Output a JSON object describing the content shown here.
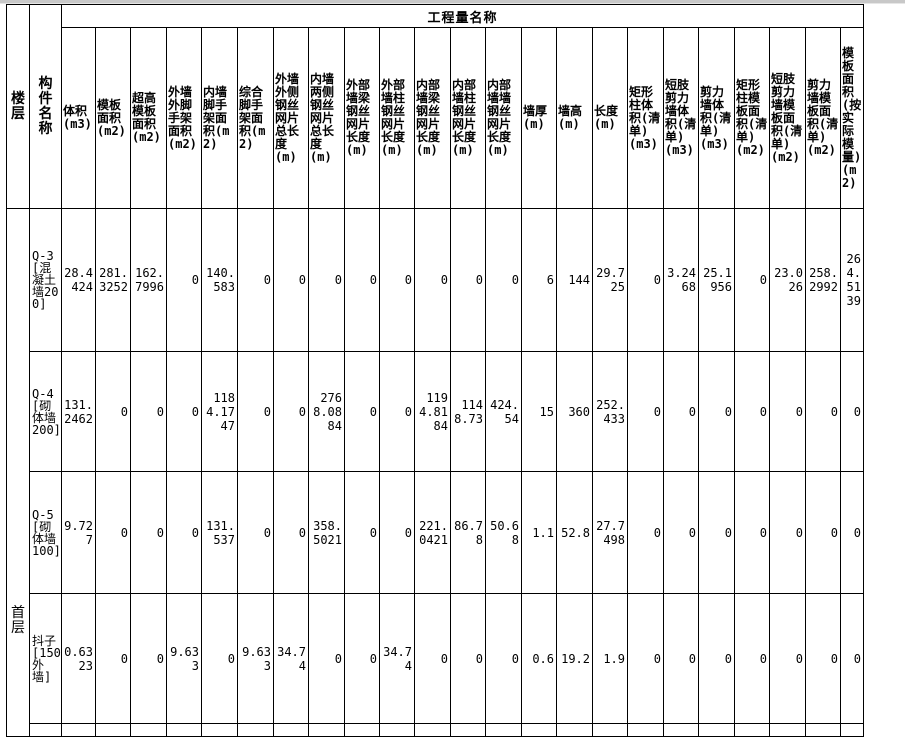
{
  "table": {
    "title": "工程量名称",
    "floor_header": "楼层",
    "name_header": "构件名称",
    "columns": [
      "体积(m3)",
      "模板面积(m2)",
      "超高模板面积(m2)",
      "外墙外脚手架面积(m2)",
      "内墙脚手架面积(m2)",
      "综合脚手架面积(m2)",
      "外墙外侧钢丝网片总长度(m)",
      "内墙两侧钢丝网片总长度(m)",
      "外部墙梁钢丝网片长度(m)",
      "外部墙柱钢丝网片长度(m)",
      "内部墙梁钢丝网片长度(m)",
      "内部墙柱钢丝网片长度(m)",
      "内部墙墙钢丝网片长度(m)",
      "墙厚(m)",
      "墙高(m)",
      "长度(m)",
      "矩形柱体积(清单)(m3)",
      "短肢剪力墙体积(清单)(m3)",
      "剪力墙体积(清单)(m3)",
      "矩形柱模板面积(清单)(m2)",
      "短肢剪力墙模板面积(清单)(m2)",
      "剪力墙模板面积(清单)(m2)",
      "模板面积(按实际模量)(m2)"
    ],
    "floor": "首层",
    "rows": [
      {
        "name": "Q-3[混凝土墙200]",
        "cells": [
          "28.4424",
          "281.3252",
          "162.7996",
          "0",
          "140.583",
          "0",
          "0",
          "0",
          "0",
          "0",
          "0",
          "0",
          "0",
          "6",
          "144",
          "29.725",
          "0",
          "3.2468",
          "25.1956",
          "0",
          "23.026",
          "258.2992",
          "264.5139"
        ]
      },
      {
        "name": "Q-4[砌体墙200]",
        "cells": [
          "131.2462",
          "0",
          "0",
          "0",
          "1184.1747",
          "0",
          "0",
          "2768.0884",
          "0",
          "0",
          "1194.8184",
          "1148.73",
          "424.54",
          "15",
          "360",
          "252.433",
          "0",
          "0",
          "0",
          "0",
          "0",
          "0",
          "0"
        ]
      },
      {
        "name": "Q-5[砌体墙100]",
        "cells": [
          "9.727",
          "0",
          "0",
          "0",
          "131.537",
          "0",
          "0",
          "358.5021",
          "0",
          "0",
          "221.0421",
          "86.78",
          "50.68",
          "1.1",
          "52.8",
          "27.7498",
          "0",
          "0",
          "0",
          "0",
          "0",
          "0",
          "0"
        ]
      },
      {
        "name": "抖子[150外墙]",
        "cells": [
          "0.6323",
          "0",
          "0",
          "9.633",
          "0",
          "9.633",
          "34.74",
          "0",
          "0",
          "34.74",
          "0",
          "0",
          "0",
          "0.6",
          "19.2",
          "1.9",
          "0",
          "0",
          "0",
          "0",
          "0",
          "0",
          "0"
        ]
      }
    ]
  }
}
